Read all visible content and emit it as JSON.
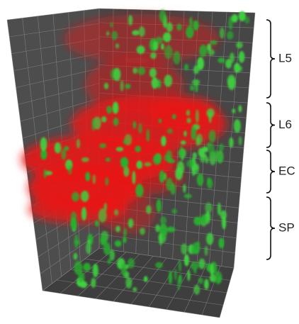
{
  "labels": [
    "L5",
    "L6",
    "EC",
    "SP"
  ]
}
